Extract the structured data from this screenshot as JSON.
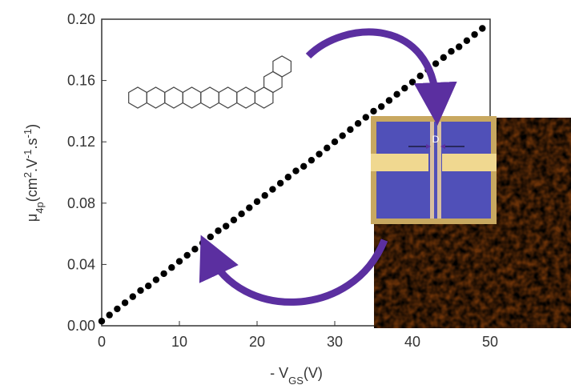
{
  "chart_data": {
    "type": "scatter",
    "xlabel": [
      "- V",
      "GS",
      "(V)"
    ],
    "ylabel": [
      "μ",
      "4p",
      "(cm",
      "2",
      ".V",
      "-1",
      ".s",
      "-1",
      ")"
    ],
    "annotations": [
      "D"
    ],
    "x": [
      0,
      1,
      2,
      3,
      4,
      5,
      6,
      7,
      8,
      9,
      10,
      11,
      12,
      13,
      14,
      15,
      16,
      17,
      18,
      19,
      20,
      21,
      22,
      23,
      24,
      25,
      26,
      27,
      28,
      29,
      30,
      31,
      32,
      33,
      34,
      35,
      36,
      37,
      38,
      39,
      40,
      41,
      42,
      43,
      44,
      45,
      46,
      47,
      48,
      49
    ],
    "values": [
      0.003,
      0.007,
      0.011,
      0.015,
      0.019,
      0.023,
      0.026,
      0.03,
      0.034,
      0.038,
      0.042,
      0.046,
      0.05,
      0.054,
      0.058,
      0.062,
      0.065,
      0.069,
      0.073,
      0.077,
      0.081,
      0.085,
      0.089,
      0.093,
      0.097,
      0.101,
      0.104,
      0.108,
      0.112,
      0.116,
      0.12,
      0.124,
      0.128,
      0.132,
      0.136,
      0.14,
      0.143,
      0.147,
      0.151,
      0.155,
      0.159,
      0.163,
      0.167,
      0.171,
      0.175,
      0.179,
      0.182,
      0.186,
      0.19,
      0.194
    ],
    "color": "#000000",
    "xlim": [
      0,
      50
    ],
    "xticks": [
      0,
      10,
      20,
      30,
      40,
      50
    ],
    "ylim": [
      0,
      0.2
    ],
    "yticks": [
      {
        "value": 0,
        "label": "0.00"
      },
      {
        "value": 0.04,
        "label": "0.04"
      },
      {
        "value": 0.08,
        "label": "0.08"
      },
      {
        "value": 0.12,
        "label": "0.12"
      },
      {
        "value": 0.16,
        "label": "0.16"
      },
      {
        "value": 0.2,
        "label": "0.20"
      }
    ]
  }
}
